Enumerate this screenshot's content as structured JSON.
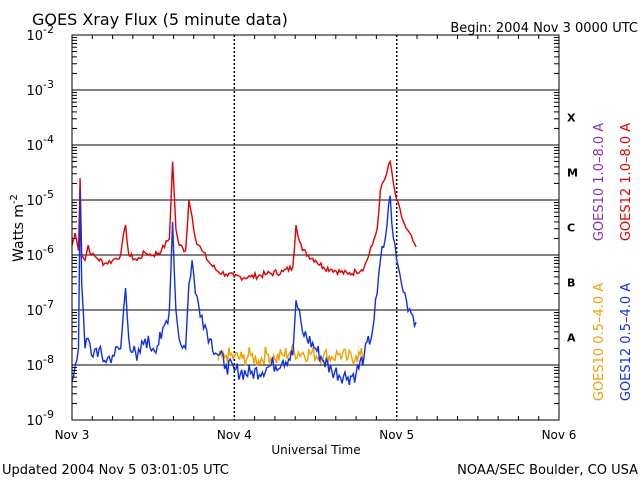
{
  "chart_data": {
    "type": "line",
    "title": "GOES Xray Flux (5 minute data)",
    "begin_label": "Begin:  2004 Nov 3 0000 UTC",
    "xlabel": "Universal Time",
    "ylabel_main": "Watts m",
    "ylabel_exp": "-2",
    "updated": "Updated 2004 Nov  5 03:01:05 UTC",
    "credit": "NOAA/SEC Boulder, CO USA",
    "x_unit": "days since 2004 Nov 3 0000 UTC",
    "xlim": [
      0,
      3
    ],
    "ylim": [
      1e-09,
      0.01
    ],
    "y_scale": "log",
    "x_ticks": [
      {
        "value": 0,
        "label": "Nov 3"
      },
      {
        "value": 1,
        "label": "Nov 4"
      },
      {
        "value": 2,
        "label": "Nov 5"
      },
      {
        "value": 3,
        "label": "Nov 6"
      }
    ],
    "y_ticks": [
      {
        "exp": -9,
        "base": "10",
        "sup": "-9"
      },
      {
        "exp": -8,
        "base": "10",
        "sup": "-8"
      },
      {
        "exp": -7,
        "base": "10",
        "sup": "-7"
      },
      {
        "exp": -6,
        "base": "10",
        "sup": "-6"
      },
      {
        "exp": -5,
        "base": "10",
        "sup": "-5"
      },
      {
        "exp": -4,
        "base": "10",
        "sup": "-4"
      },
      {
        "exp": -3,
        "base": "10",
        "sup": "-3"
      },
      {
        "exp": -2,
        "base": "10",
        "sup": "-2"
      }
    ],
    "flare_classes": [
      {
        "label": "A",
        "exp": -7.5
      },
      {
        "label": "B",
        "exp": -6.5
      },
      {
        "label": "C",
        "exp": -5.5
      },
      {
        "label": "M",
        "exp": -4.5
      },
      {
        "label": "X",
        "exp": -3.5
      }
    ],
    "legend": [
      {
        "text": "GOES12 1.0–8.0 A",
        "color": "#e00000"
      },
      {
        "text": "GOES10 1.0–8.0 A",
        "color": "#8030c0"
      },
      {
        "text": "GOES12 0.5–4.0 A",
        "color": "#1030e0"
      },
      {
        "text": "GOES10 0.5–4.0 A",
        "color": "#f0a000"
      }
    ],
    "series": [
      {
        "name": "GOES12 1.0-8.0 A",
        "color": "#e00000",
        "x": [
          0,
          0.02,
          0.04,
          0.05,
          0.06,
          0.08,
          0.1,
          0.12,
          0.15,
          0.2,
          0.25,
          0.3,
          0.33,
          0.35,
          0.4,
          0.45,
          0.5,
          0.55,
          0.6,
          0.62,
          0.64,
          0.66,
          0.7,
          0.72,
          0.74,
          0.76,
          0.8,
          0.85,
          0.9,
          0.95,
          1.0,
          1.1,
          1.2,
          1.3,
          1.36,
          1.38,
          1.42,
          1.5,
          1.55,
          1.6,
          1.7,
          1.75,
          1.8,
          1.85,
          1.88,
          1.9,
          1.93,
          1.96,
          1.98,
          2.0,
          2.03,
          2.06,
          2.1,
          2.12
        ],
        "y": [
          1.5e-06,
          2.5e-06,
          1.2e-06,
          2.5e-05,
          1e-06,
          8e-07,
          1.5e-06,
          1e-06,
          9e-07,
          7e-07,
          8e-07,
          1e-06,
          3.5e-06,
          1e-06,
          8e-07,
          1.1e-06,
          1e-06,
          1.2e-06,
          2e-06,
          5e-05,
          3e-06,
          1.5e-06,
          1.2e-06,
          1e-05,
          5e-06,
          2e-06,
          1.2e-06,
          7e-07,
          5e-07,
          4.5e-07,
          4e-07,
          4e-07,
          4.5e-07,
          5e-07,
          6e-07,
          3.5e-06,
          1.2e-06,
          8e-07,
          6e-07,
          5.5e-07,
          4.5e-07,
          5e-07,
          6e-07,
          1.5e-06,
          3e-06,
          1.5e-05,
          2.5e-05,
          5e-05,
          2e-05,
          1e-05,
          5e-06,
          3e-06,
          1.8e-06,
          1.4e-06
        ]
      },
      {
        "name": "GOES10 0.5-4.0 A",
        "color": "#f0a000",
        "x": [
          0.9,
          0.95,
          1.0,
          1.05,
          1.1,
          1.15,
          1.2,
          1.25,
          1.3,
          1.35,
          1.55,
          1.6,
          1.65,
          1.7,
          1.75,
          1.8
        ],
        "y": [
          1.2e-08,
          1.5e-08,
          1.4e-08,
          1.3e-08,
          1.5e-08,
          1.2e-08,
          1.6e-08,
          1.3e-08,
          1.5e-08,
          1.8e-08,
          1.5e-08,
          1.4e-08,
          1.6e-08,
          1.3e-08,
          1.5e-08,
          1.4e-08
        ]
      },
      {
        "name": "GOES12 0.5-4.0 A",
        "color": "#1030e0",
        "x": [
          0,
          0.02,
          0.04,
          0.05,
          0.06,
          0.08,
          0.1,
          0.12,
          0.15,
          0.2,
          0.25,
          0.3,
          0.33,
          0.35,
          0.4,
          0.45,
          0.5,
          0.55,
          0.6,
          0.62,
          0.64,
          0.66,
          0.7,
          0.72,
          0.74,
          0.76,
          0.8,
          0.85,
          0.9,
          0.95,
          1.0,
          1.1,
          1.2,
          1.3,
          1.36,
          1.38,
          1.42,
          1.5,
          1.55,
          1.6,
          1.7,
          1.75,
          1.8,
          1.85,
          1.88,
          1.9,
          1.93,
          1.96,
          1.98,
          2.0,
          2.03,
          2.06,
          2.1,
          2.12
        ],
        "y": [
          5e-09,
          1e-08,
          2e-08,
          1.5e-05,
          3e-07,
          2e-08,
          3e-08,
          1.5e-08,
          2e-08,
          1.2e-08,
          1.5e-08,
          2e-08,
          2.5e-07,
          3e-08,
          1.2e-08,
          3e-08,
          2e-08,
          3e-08,
          1e-07,
          4e-06,
          1e-07,
          3e-08,
          2e-08,
          3e-07,
          8e-07,
          2e-07,
          8e-08,
          3e-08,
          1.5e-08,
          1e-08,
          8e-09,
          7e-09,
          9e-09,
          1.2e-08,
          1.5e-08,
          1.5e-07,
          4e-08,
          2e-08,
          1.2e-08,
          8e-09,
          6e-09,
          7e-09,
          1.5e-08,
          4e-08,
          2e-07,
          8e-07,
          2e-06,
          1.2e-05,
          2e-06,
          8e-07,
          3e-07,
          1.5e-07,
          8e-08,
          6e-08
        ]
      }
    ]
  }
}
